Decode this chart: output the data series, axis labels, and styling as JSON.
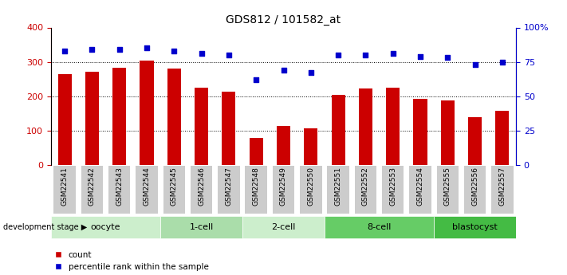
{
  "title": "GDS812 / 101582_at",
  "samples": [
    "GSM22541",
    "GSM22542",
    "GSM22543",
    "GSM22544",
    "GSM22545",
    "GSM22546",
    "GSM22547",
    "GSM22548",
    "GSM22549",
    "GSM22550",
    "GSM22551",
    "GSM22552",
    "GSM22553",
    "GSM22554",
    "GSM22555",
    "GSM22556",
    "GSM22557"
  ],
  "bar_values": [
    265,
    272,
    283,
    303,
    280,
    224,
    214,
    80,
    113,
    106,
    205,
    222,
    225,
    193,
    187,
    140,
    158
  ],
  "dot_values": [
    83,
    84,
    84,
    85,
    83,
    81,
    80,
    62,
    69,
    67,
    80,
    80,
    81,
    79,
    78,
    73,
    75
  ],
  "bar_color": "#cc0000",
  "dot_color": "#0000cc",
  "ylim_left": [
    0,
    400
  ],
  "ylim_right": [
    0,
    100
  ],
  "yticks_left": [
    0,
    100,
    200,
    300,
    400
  ],
  "yticks_right": [
    0,
    25,
    50,
    75,
    100
  ],
  "ytick_labels_right": [
    "0",
    "25",
    "50",
    "75",
    "100%"
  ],
  "grid_values": [
    100,
    200,
    300
  ],
  "stages": [
    {
      "label": "oocyte",
      "start": 0,
      "end": 4,
      "color": "#cceecc"
    },
    {
      "label": "1-cell",
      "start": 4,
      "end": 7,
      "color": "#aaddaa"
    },
    {
      "label": "2-cell",
      "start": 7,
      "end": 10,
      "color": "#cceecc"
    },
    {
      "label": "8-cell",
      "start": 10,
      "end": 14,
      "color": "#66cc66"
    },
    {
      "label": "blastocyst",
      "start": 14,
      "end": 17,
      "color": "#44bb44"
    }
  ],
  "legend_label_bar": "count",
  "legend_label_dot": "percentile rank within the sample",
  "dev_stage_label": "development stage",
  "bar_width": 0.5,
  "tick_bg_color": "#cccccc",
  "bg_color": "#ffffff"
}
